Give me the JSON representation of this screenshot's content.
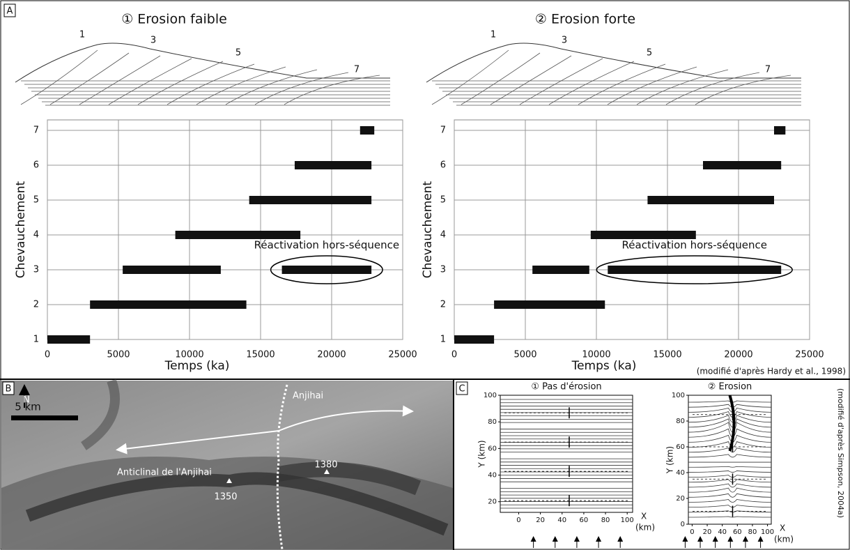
{
  "panels": {
    "a": "A",
    "b": "B",
    "c": "C"
  },
  "chart_data": [
    {
      "type": "range-bar",
      "title": "① Erosion faible",
      "section_labels": [
        "1",
        "3",
        "5",
        "7"
      ],
      "xlabel": "Temps (ka)",
      "ylabel": "Chevauchement",
      "xlim": [
        0,
        25000
      ],
      "xticks": [
        0,
        5000,
        10000,
        15000,
        20000,
        25000
      ],
      "ylim": [
        1,
        7.3
      ],
      "yticks": [
        1,
        2,
        3,
        4,
        5,
        6,
        7
      ],
      "grid": true,
      "color": "#111111",
      "segments": [
        {
          "y": 1,
          "start": 0,
          "end": 3000
        },
        {
          "y": 2,
          "start": 3000,
          "end": 14000
        },
        {
          "y": 3,
          "start": 5300,
          "end": 12200
        },
        {
          "y": 3,
          "start": 16500,
          "end": 22800
        },
        {
          "y": 4,
          "start": 9000,
          "end": 17800
        },
        {
          "y": 5,
          "start": 14200,
          "end": 22800
        },
        {
          "y": 6,
          "start": 17400,
          "end": 22800
        },
        {
          "y": 7,
          "start": 22000,
          "end": 23000
        }
      ],
      "annotation": "Réactivation hors-séquence"
    },
    {
      "type": "range-bar",
      "title": "② Erosion forte",
      "section_labels": [
        "1",
        "3",
        "5",
        "7"
      ],
      "xlabel": "Temps (ka)",
      "ylabel": "Chevauchement",
      "xlim": [
        0,
        25000
      ],
      "xticks": [
        0,
        5000,
        10000,
        15000,
        20000,
        25000
      ],
      "ylim": [
        1,
        7.3
      ],
      "yticks": [
        1,
        2,
        3,
        4,
        5,
        6,
        7
      ],
      "grid": true,
      "color": "#111111",
      "segments": [
        {
          "y": 1,
          "start": 0,
          "end": 2800
        },
        {
          "y": 2,
          "start": 2800,
          "end": 10600
        },
        {
          "y": 3,
          "start": 5500,
          "end": 9500
        },
        {
          "y": 3,
          "start": 10800,
          "end": 23000
        },
        {
          "y": 4,
          "start": 9600,
          "end": 17000
        },
        {
          "y": 5,
          "start": 13600,
          "end": 22500
        },
        {
          "y": 6,
          "start": 17500,
          "end": 23000
        },
        {
          "y": 7,
          "start": 22500,
          "end": 23300
        }
      ],
      "annotation": "Réactivation hors-séquence",
      "source": "(modifié d'après Hardy et al., 1998)"
    },
    {
      "type": "contour",
      "title": "① Pas d'érosion",
      "xlabel": "X",
      "xunit": "(km)",
      "ylabel": "Y (km)",
      "xlim": [
        -17,
        105
      ],
      "xticks": [
        0,
        20,
        40,
        60,
        80,
        100
      ],
      "ylim": [
        12,
        100
      ],
      "yticks": [
        20,
        40,
        60,
        80,
        100
      ]
    },
    {
      "type": "contour",
      "title": "② Erosion",
      "xlabel": "X",
      "xunit": "(km)",
      "ylabel": "Y (km)",
      "xlim": [
        -5,
        105
      ],
      "xticks": [
        0,
        20,
        40,
        60,
        80,
        100
      ],
      "ylim": [
        0,
        100
      ],
      "yticks": [
        0,
        20,
        40,
        60,
        80,
        100
      ],
      "source": "(modifié d'après Simpson, 2004a)"
    }
  ],
  "photo": {
    "north": "N",
    "scale": "5 km",
    "river": "Anjihai",
    "anticline": "Anticlinal de l'Anjihai",
    "peaks": [
      "1350",
      "1380"
    ]
  }
}
